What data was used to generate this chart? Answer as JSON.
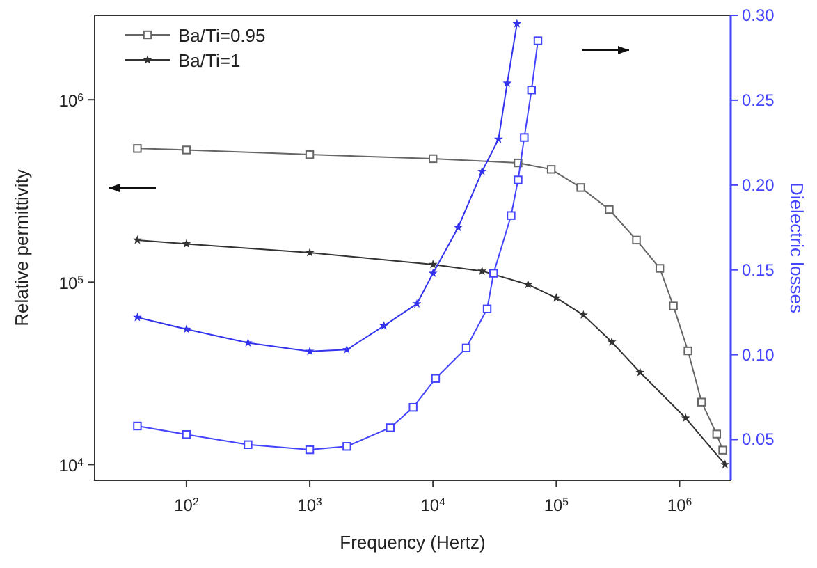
{
  "chart_data": {
    "type": "line",
    "xlabel": "Frequency (Hertz)",
    "ylabel": "Relative permittivity",
    "y2label": "Dielectric losses",
    "log": "xy",
    "grid": false,
    "legend": "top left",
    "line_style": "solid",
    "xlim": [
      18,
      2600000
    ],
    "ylim": [
      8200,
      2900000
    ],
    "y2lim": [
      0.026,
      0.3
    ],
    "xticks": [
      {
        "value": 100,
        "label": "10$^{2}$"
      },
      {
        "value": 1000,
        "label": "10$^{3}$"
      },
      {
        "value": 10000,
        "label": "10$^{4}$"
      },
      {
        "value": 100000,
        "label": "10$^{5}$"
      },
      {
        "value": 1000000,
        "label": "10$^{6}$"
      }
    ],
    "yticks": [
      {
        "value": 10000,
        "label": "10$^{4}$"
      },
      {
        "value": 100000,
        "label": "10$^{5}$"
      },
      {
        "value": 1000000,
        "label": "10$^{6}$"
      }
    ],
    "y2ticks": [
      {
        "value": 0.05,
        "label": "0.05"
      },
      {
        "value": 0.1,
        "label": "0.10"
      },
      {
        "value": 0.15,
        "label": "0.15"
      },
      {
        "value": 0.2,
        "label": "0.20"
      },
      {
        "value": 0.25,
        "label": "0.25"
      },
      {
        "value": 0.3,
        "label": "0.30"
      }
    ],
    "series": [
      {
        "name": "Ba/Ti=0.95",
        "color": "#666666",
        "marker": "square",
        "x": [
          40,
          100,
          1000,
          10000,
          49000,
          91000,
          158000,
          269000,
          447000,
          692000,
          891000,
          1170000,
          1510000,
          2000000,
          2240000
        ],
        "values": [
          540000,
          530000,
          500000,
          475000,
          450000,
          415000,
          330000,
          250000,
          170000,
          119000,
          74000,
          42000,
          22000,
          14700,
          12000
        ]
      },
      {
        "name": "Ba/Ti=1",
        "color": "#333333",
        "marker": "star",
        "x": [
          40,
          100,
          1000,
          10000,
          25000,
          59000,
          100000,
          166000,
          282000,
          479000,
          1120000,
          2340000
        ],
        "values": [
          170000,
          162000,
          145000,
          125000,
          115000,
          97000,
          82000,
          66000,
          47000,
          32000,
          18000,
          10000
        ]
      },
      {
        "color": "#4444ff",
        "marker": "square",
        "axis": "y2",
        "x": [
          40,
          100,
          316,
          1000,
          2000,
          4500,
          6900,
          10500,
          18600,
          27500,
          31000,
          43000,
          49000,
          55000,
          63000,
          71000
        ],
        "values": [
          0.058,
          0.053,
          0.047,
          0.044,
          0.046,
          0.057,
          0.069,
          0.086,
          0.104,
          0.127,
          0.148,
          0.182,
          0.203,
          0.228,
          0.256,
          0.285
        ]
      },
      {
        "color": "#3333ee",
        "marker": "star",
        "axis": "y2",
        "x": [
          40,
          100,
          316,
          1000,
          2000,
          4000,
          7400,
          10000,
          16000,
          25000,
          34000,
          40000,
          48000
        ],
        "values": [
          0.122,
          0.115,
          0.107,
          0.102,
          0.103,
          0.117,
          0.13,
          0.148,
          0.175,
          0.208,
          0.227,
          0.26,
          0.295
        ]
      }
    ]
  }
}
